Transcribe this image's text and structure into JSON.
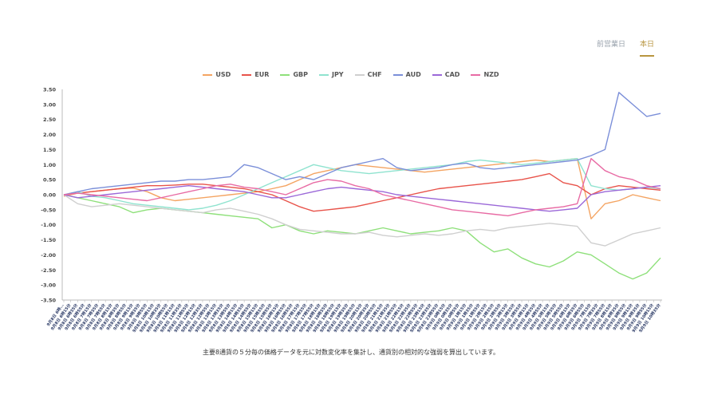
{
  "tabs": [
    {
      "label": "前営業日",
      "active": false
    },
    {
      "label": "本日",
      "active": true
    }
  ],
  "caption": "主要8通貨の５分毎の価格データを元に対数変化率を集計し、通貨別の相対的な強弱を算出しています。",
  "chart_data": {
    "type": "line",
    "title": "",
    "xlabel": "",
    "ylabel": "",
    "ylim": [
      -3.5,
      3.5
    ],
    "yticks": [
      "3.50",
      "3.00",
      "2.50",
      "2.00",
      "1.50",
      "1.00",
      "0.50",
      "0.00",
      "-0.50",
      "-1.00",
      "-1.50",
      "-2.00",
      "-2.50",
      "-3.00",
      "-3.50"
    ],
    "grid": false,
    "legend": "top-center",
    "x_tick_labels": [
      "9月8日 6時...",
      "9月8日 6時15分",
      "9月8日 6時35分",
      "9月8日 6時55分",
      "9月8日 7時15分",
      "9月8日 7時35分",
      "9月8日 7時55分",
      "9月8日 8時15分",
      "9月8日 8時35分",
      "9月8日 8時55分",
      "9月8日 9時15分",
      "9月8日 9時35分",
      "9月8日 9時55分",
      "9月8日 10時15分",
      "9月8日 10時35分",
      "9月8日 10時55分",
      "9月8日 11時15分",
      "9月8日 11時35分",
      "9月8日 11時55分",
      "9月8日 12時15分",
      "9月8日 12時35分",
      "9月8日 12時55分",
      "9月8日 13時15分",
      "9月8日 13時35分",
      "9月8日 13時55分",
      "9月8日 14時15分",
      "9月8日 14時35分",
      "9月8日 14時55分",
      "9月8日 15時15分",
      "9月8日 15時35分",
      "9月8日 15時55分",
      "9月8日 16時15分",
      "9月8日 16時35分",
      "9月8日 16時55分",
      "9月8日 17時15分",
      "9月8日 17時35分",
      "9月8日 17時55分",
      "9月8日 18時15分",
      "9月8日 18時35分",
      "9月8日 18時55分",
      "9月8日 19時15分",
      "9月8日 19時35分",
      "9月8日 19時55分",
      "9月8日 20時15分",
      "9月8日 20時35分",
      "9月8日 20時55分",
      "9月8日 21時15分",
      "9月8日 21時35分",
      "9月8日 21時55分",
      "9月8日 22時15分",
      "9月8日 22時35分",
      "9月8日 22時55分",
      "9月8日 23時15分",
      "9月8日 23時35分",
      "9月8日 23時55分",
      "9月9日 0時15分",
      "9月9日 0時35分",
      "9月9日 0時55分",
      "9月9日 1時15分",
      "9月9日 1時35分",
      "9月9日 1時55分",
      "9月9日 2時15分",
      "9月9日 2時35分",
      "9月9日 2時55分",
      "9月9日 3時15分",
      "9月9日 3時35分",
      "9月9日 3時55分",
      "9月9日 4時15分",
      "9月9日 4時35分",
      "9月9日 4時55分",
      "9月9日 5時15分",
      "9月9日 5時35分",
      "9月9日 5時55分",
      "9月9日 6時15分",
      "9月9日 6時35分",
      "9月9日 6時55分",
      "9月9日 7時15分",
      "9月9日 7時35分",
      "9月9日 7時55分",
      "9月9日 8時15分",
      "9月9日 8時35分",
      "9月9日 8時55分",
      "9月9日 9時15分",
      "9月9日 9時35分",
      "9月9日 9時55分",
      "9月9日 10時15分",
      "9月9日 10時35分"
    ],
    "series": [
      {
        "name": "USD",
        "color": "#f4a462",
        "values": [
          -0.05,
          0.05,
          0.1,
          0.15,
          0.2,
          0.22,
          0.1,
          -0.1,
          -0.2,
          -0.15,
          -0.1,
          -0.05,
          0.0,
          0.05,
          0.1,
          0.2,
          0.3,
          0.5,
          0.7,
          0.8,
          0.9,
          1.0,
          0.95,
          0.9,
          0.85,
          0.8,
          0.75,
          0.8,
          0.85,
          0.9,
          0.95,
          1.0,
          1.05,
          1.1,
          1.15,
          1.1,
          1.15,
          1.2,
          -0.8,
          -0.3,
          -0.2,
          0.0,
          -0.1,
          -0.2
        ]
      },
      {
        "name": "EUR",
        "color": "#e8534a",
        "values": [
          0.0,
          0.05,
          0.1,
          0.15,
          0.2,
          0.25,
          0.3,
          0.3,
          0.32,
          0.35,
          0.35,
          0.3,
          0.25,
          0.2,
          0.1,
          0.0,
          -0.2,
          -0.4,
          -0.55,
          -0.5,
          -0.45,
          -0.4,
          -0.3,
          -0.2,
          -0.1,
          0.0,
          0.1,
          0.2,
          0.25,
          0.3,
          0.35,
          0.4,
          0.45,
          0.5,
          0.6,
          0.7,
          0.4,
          0.3,
          0.0,
          0.2,
          0.3,
          0.25,
          0.2,
          0.15
        ]
      },
      {
        "name": "GBP",
        "color": "#8ee07a",
        "values": [
          0.0,
          -0.1,
          -0.2,
          -0.3,
          -0.4,
          -0.6,
          -0.5,
          -0.45,
          -0.5,
          -0.55,
          -0.6,
          -0.65,
          -0.7,
          -0.75,
          -0.8,
          -1.1,
          -1.0,
          -1.2,
          -1.3,
          -1.2,
          -1.25,
          -1.3,
          -1.2,
          -1.1,
          -1.2,
          -1.3,
          -1.25,
          -1.2,
          -1.1,
          -1.2,
          -1.6,
          -1.9,
          -1.8,
          -2.1,
          -2.3,
          -2.4,
          -2.2,
          -1.9,
          -2.0,
          -2.3,
          -2.6,
          -2.8,
          -2.6,
          -2.1
        ]
      },
      {
        "name": "JPY",
        "color": "#8fe3cf",
        "values": [
          0.0,
          0.1,
          -0.05,
          -0.1,
          -0.2,
          -0.3,
          -0.35,
          -0.4,
          -0.45,
          -0.5,
          -0.45,
          -0.35,
          -0.2,
          0.0,
          0.2,
          0.4,
          0.6,
          0.8,
          1.0,
          0.9,
          0.8,
          0.75,
          0.7,
          0.75,
          0.8,
          0.85,
          0.9,
          0.95,
          1.0,
          1.1,
          1.15,
          1.1,
          1.05,
          1.0,
          1.05,
          1.1,
          1.15,
          1.2,
          0.3,
          0.2,
          0.15,
          0.2,
          0.25,
          0.2
        ]
      },
      {
        "name": "CHF",
        "color": "#cfcfcf",
        "values": [
          0.0,
          -0.3,
          -0.4,
          -0.35,
          -0.3,
          -0.35,
          -0.4,
          -0.45,
          -0.5,
          -0.55,
          -0.6,
          -0.5,
          -0.45,
          -0.55,
          -0.65,
          -0.8,
          -1.0,
          -1.15,
          -1.2,
          -1.25,
          -1.3,
          -1.3,
          -1.25,
          -1.35,
          -1.4,
          -1.35,
          -1.3,
          -1.35,
          -1.3,
          -1.2,
          -1.15,
          -1.2,
          -1.1,
          -1.05,
          -1.0,
          -0.95,
          -1.0,
          -1.05,
          -1.6,
          -1.7,
          -1.5,
          -1.3,
          -1.2,
          -1.1
        ]
      },
      {
        "name": "AUD",
        "color": "#7b8fd9",
        "values": [
          0.0,
          0.1,
          0.2,
          0.25,
          0.3,
          0.35,
          0.4,
          0.45,
          0.45,
          0.5,
          0.5,
          0.55,
          0.6,
          1.0,
          0.9,
          0.7,
          0.5,
          0.6,
          0.5,
          0.7,
          0.9,
          1.0,
          1.1,
          1.2,
          0.9,
          0.8,
          0.85,
          0.9,
          1.0,
          1.05,
          0.9,
          0.85,
          0.9,
          0.95,
          1.0,
          1.05,
          1.1,
          1.15,
          1.3,
          1.5,
          3.4,
          3.0,
          2.6,
          2.7
        ]
      },
      {
        "name": "CAD",
        "color": "#9b68d8",
        "values": [
          0.0,
          -0.1,
          -0.05,
          0.0,
          0.05,
          0.1,
          0.15,
          0.2,
          0.25,
          0.3,
          0.25,
          0.2,
          0.15,
          0.1,
          0.0,
          -0.1,
          -0.1,
          0.0,
          0.1,
          0.2,
          0.25,
          0.2,
          0.15,
          0.1,
          0.0,
          -0.05,
          -0.1,
          -0.15,
          -0.2,
          -0.25,
          -0.3,
          -0.35,
          -0.4,
          -0.45,
          -0.5,
          -0.55,
          -0.5,
          -0.45,
          0.0,
          0.1,
          0.15,
          0.2,
          0.25,
          0.3
        ]
      },
      {
        "name": "NZD",
        "color": "#e86ba4",
        "values": [
          0.0,
          0.05,
          0.0,
          -0.05,
          -0.1,
          -0.15,
          -0.2,
          -0.1,
          0.0,
          0.1,
          0.2,
          0.3,
          0.35,
          0.25,
          0.2,
          0.1,
          0.0,
          0.2,
          0.4,
          0.5,
          0.45,
          0.3,
          0.2,
          0.0,
          -0.1,
          -0.2,
          -0.3,
          -0.4,
          -0.5,
          -0.55,
          -0.6,
          -0.65,
          -0.7,
          -0.6,
          -0.5,
          -0.45,
          -0.4,
          -0.3,
          1.2,
          0.8,
          0.6,
          0.5,
          0.3,
          0.2
        ]
      }
    ]
  }
}
